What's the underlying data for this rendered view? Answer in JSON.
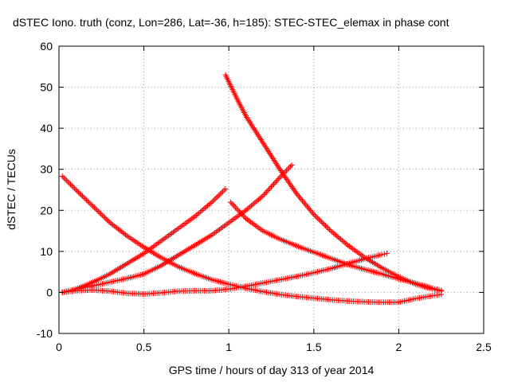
{
  "chart_data": {
    "type": "scatter",
    "title": "dSTEC Iono. truth (conz, Lon=286, Lat=-36, h=185): STEC-STEC_elemax in phase cont",
    "xlabel": "GPS time / hours of day 313 of year 2014",
    "ylabel": "dSTEC  / TECUs",
    "xlim": [
      0,
      2.5
    ],
    "ylim": [
      -10,
      60
    ],
    "xticks": [
      0,
      0.5,
      1,
      1.5,
      2,
      2.5
    ],
    "xtick_labels": [
      "0",
      "0.5",
      "1",
      "1.5",
      "2",
      "2.5"
    ],
    "yticks": [
      -10,
      0,
      10,
      20,
      30,
      40,
      50,
      60
    ],
    "ytick_labels": [
      "-10",
      "0",
      "10",
      "20",
      "30",
      "40",
      "50",
      "60"
    ],
    "grid": true,
    "marker": "+",
    "color": "#ff0000",
    "series": [
      {
        "x": [
          0.02,
          0.1,
          0.2,
          0.3,
          0.4,
          0.5,
          0.6,
          0.7,
          0.8,
          0.9,
          1.0,
          1.1,
          1.2,
          1.3,
          1.4,
          1.5,
          1.6,
          1.7,
          1.8,
          1.9,
          2.0,
          2.1,
          2.2,
          2.25
        ],
        "y": [
          28.3,
          25,
          21,
          17,
          13.8,
          11,
          8.5,
          6.3,
          4.6,
          3.1,
          2.0,
          1.0,
          0.2,
          -0.5,
          -1.0,
          -1.4,
          -1.8,
          -2.1,
          -2.3,
          -2.4,
          -2.4,
          -1.5,
          -0.8,
          -0.5
        ]
      },
      {
        "x": [
          0.02,
          0.1,
          0.2,
          0.3,
          0.4,
          0.5,
          0.6,
          0.7,
          0.8,
          0.9,
          0.98
        ],
        "y": [
          0.0,
          0.8,
          2.5,
          4.5,
          7,
          9.5,
          12.5,
          15.5,
          18.5,
          22,
          25.2
        ]
      },
      {
        "x": [
          0.02,
          0.1,
          0.2,
          0.3,
          0.4,
          0.5,
          0.6,
          0.7,
          0.8,
          0.9,
          1.0,
          1.1,
          1.2,
          1.3,
          1.37
        ],
        "y": [
          0.0,
          0.8,
          1.6,
          2.5,
          3.4,
          4.5,
          6.5,
          9,
          11.5,
          14,
          17,
          20,
          23.5,
          28,
          31
        ]
      },
      {
        "x": [
          0.02,
          0.1,
          0.2,
          0.3,
          0.4,
          0.5,
          0.6,
          0.7,
          0.8,
          0.9,
          1.0,
          1.1,
          1.2,
          1.3,
          1.4,
          1.5,
          1.6,
          1.7,
          1.8,
          1.9,
          1.93
        ],
        "y": [
          0.0,
          0.4,
          0.6,
          0.3,
          -0.2,
          -0.4,
          -0.1,
          0.3,
          0.4,
          0.4,
          0.8,
          1.5,
          2.3,
          3.1,
          3.9,
          4.8,
          5.8,
          7.0,
          8.2,
          9.2,
          9.5
        ]
      },
      {
        "x": [
          0.98,
          1.05,
          1.1,
          1.2,
          1.3,
          1.4,
          1.5,
          1.6,
          1.7,
          1.8,
          1.9,
          2.0,
          2.1,
          2.2,
          2.25
        ],
        "y": [
          53,
          47,
          43,
          36.5,
          30,
          24,
          19,
          15,
          11.5,
          8.5,
          6,
          3.8,
          2.0,
          0.8,
          0.3
        ]
      },
      {
        "x": [
          1.01,
          1.1,
          1.2,
          1.3,
          1.4,
          1.5,
          1.6,
          1.7,
          1.8,
          1.9,
          2.0,
          2.1,
          2.2,
          2.25
        ],
        "y": [
          22,
          18,
          15,
          13,
          11.3,
          9.8,
          8.3,
          6.8,
          5.6,
          4.5,
          3.3,
          2.2,
          1.0,
          0.5
        ]
      }
    ]
  }
}
